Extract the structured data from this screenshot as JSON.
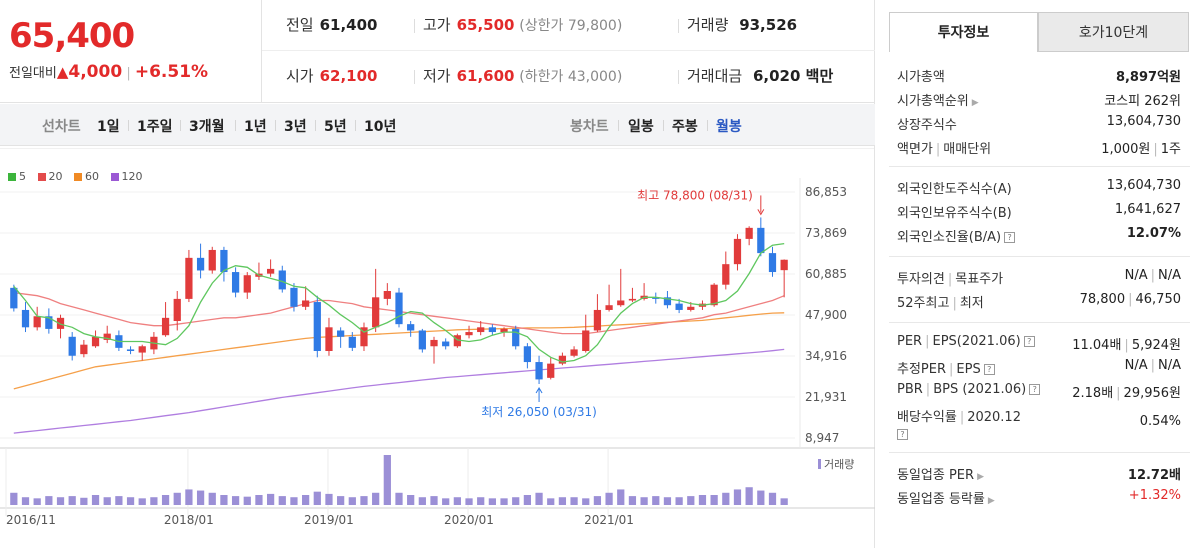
{
  "header": {
    "price": "65,400",
    "change_label": "전일대비",
    "change_arrow": "▲",
    "change_value": "4,000",
    "change_pct": "+6.51%"
  },
  "quotes": {
    "prev_label": "전일",
    "prev": "61,400",
    "high_label": "고가",
    "high": "65,500",
    "upper_limit": "(상한가 79,800)",
    "volume_label": "거래량",
    "volume": "93,526",
    "open_label": "시가",
    "open": "62,100",
    "low_label": "저가",
    "low": "61,600",
    "lower_limit": "(하한가 43,000)",
    "amount_label": "거래대금",
    "amount": "6,020 백만"
  },
  "period_tabs": {
    "line_label": "선차트",
    "line_items": [
      "1일",
      "1주일",
      "3개월",
      "1년",
      "3년",
      "5년",
      "10년"
    ],
    "candle_label": "봉차트",
    "candle_items": [
      "일봉",
      "주봉",
      "월봉"
    ],
    "active_candle": "월봉"
  },
  "legend": [
    {
      "label": "5",
      "color": "#3cb53c"
    },
    {
      "label": "20",
      "color": "#e34b4b"
    },
    {
      "label": "60",
      "color": "#f08a24"
    },
    {
      "label": "120",
      "color": "#9b59d4"
    }
  ],
  "chart_data": {
    "type": "candlestick",
    "y_ticks": [
      "86,853",
      "73,869",
      "60,885",
      "47,900",
      "34,916",
      "21,931",
      "8,947"
    ],
    "y_range": [
      8947,
      86853
    ],
    "x_ticks": [
      "2016/11",
      "2018/01",
      "2019/01",
      "2020/01",
      "2021/01"
    ],
    "annotations": {
      "high": "최고 78,800 (08/31)",
      "low": "최저 26,050 (03/31)"
    },
    "volume_label": "거래량",
    "candles": [
      {
        "o": 56500,
        "c": 50000,
        "h": 57500,
        "l": 49000
      },
      {
        "o": 49500,
        "c": 44000,
        "h": 52000,
        "l": 42500
      },
      {
        "o": 44000,
        "c": 47500,
        "h": 50500,
        "l": 43000
      },
      {
        "o": 47500,
        "c": 43500,
        "h": 50000,
        "l": 42000
      },
      {
        "o": 43500,
        "c": 47000,
        "h": 48000,
        "l": 40500
      },
      {
        "o": 41000,
        "c": 35000,
        "h": 42500,
        "l": 33500
      },
      {
        "o": 35500,
        "c": 38500,
        "h": 40000,
        "l": 34500
      },
      {
        "o": 38000,
        "c": 41000,
        "h": 43000,
        "l": 37500
      },
      {
        "o": 40000,
        "c": 42000,
        "h": 44500,
        "l": 39000
      },
      {
        "o": 41500,
        "c": 37500,
        "h": 43000,
        "l": 36500
      },
      {
        "o": 37000,
        "c": 36500,
        "h": 38000,
        "l": 35500
      },
      {
        "o": 36000,
        "c": 38000,
        "h": 38500,
        "l": 33500
      },
      {
        "o": 37000,
        "c": 41000,
        "h": 42500,
        "l": 35500
      },
      {
        "o": 41500,
        "c": 47000,
        "h": 52000,
        "l": 41000
      },
      {
        "o": 46000,
        "c": 53000,
        "h": 55500,
        "l": 43000
      },
      {
        "o": 53000,
        "c": 66000,
        "h": 68500,
        "l": 52000
      },
      {
        "o": 66000,
        "c": 62000,
        "h": 70500,
        "l": 59500
      },
      {
        "o": 62000,
        "c": 68500,
        "h": 69500,
        "l": 61000
      },
      {
        "o": 68500,
        "c": 61500,
        "h": 69500,
        "l": 58500
      },
      {
        "o": 61500,
        "c": 55000,
        "h": 63000,
        "l": 53500
      },
      {
        "o": 55000,
        "c": 60500,
        "h": 61500,
        "l": 53000
      },
      {
        "o": 60000,
        "c": 61000,
        "h": 64500,
        "l": 59000
      },
      {
        "o": 61000,
        "c": 62500,
        "h": 65500,
        "l": 60000
      },
      {
        "o": 62000,
        "c": 56000,
        "h": 63500,
        "l": 55000
      },
      {
        "o": 56500,
        "c": 50500,
        "h": 58000,
        "l": 49000
      },
      {
        "o": 50500,
        "c": 52500,
        "h": 57000,
        "l": 49500
      },
      {
        "o": 52000,
        "c": 36500,
        "h": 54000,
        "l": 34500
      },
      {
        "o": 36500,
        "c": 44000,
        "h": 47000,
        "l": 35000
      },
      {
        "o": 43000,
        "c": 41000,
        "h": 44000,
        "l": 37500
      },
      {
        "o": 41000,
        "c": 37500,
        "h": 42500,
        "l": 36500
      },
      {
        "o": 38000,
        "c": 44000,
        "h": 45500,
        "l": 36500
      },
      {
        "o": 44000,
        "c": 53500,
        "h": 62500,
        "l": 42500
      },
      {
        "o": 53000,
        "c": 55500,
        "h": 58000,
        "l": 51000
      },
      {
        "o": 55000,
        "c": 45000,
        "h": 56500,
        "l": 44000
      },
      {
        "o": 45000,
        "c": 43000,
        "h": 46000,
        "l": 41000
      },
      {
        "o": 43000,
        "c": 37000,
        "h": 43500,
        "l": 36000
      },
      {
        "o": 38000,
        "c": 40000,
        "h": 41000,
        "l": 32500
      },
      {
        "o": 39500,
        "c": 38000,
        "h": 40500,
        "l": 37000
      },
      {
        "o": 38000,
        "c": 41500,
        "h": 42000,
        "l": 37500
      },
      {
        "o": 41500,
        "c": 42500,
        "h": 44500,
        "l": 40500
      },
      {
        "o": 42500,
        "c": 44000,
        "h": 46000,
        "l": 41500
      },
      {
        "o": 44000,
        "c": 42500,
        "h": 45000,
        "l": 41500
      },
      {
        "o": 42500,
        "c": 43500,
        "h": 44000,
        "l": 41000
      },
      {
        "o": 43500,
        "c": 38000,
        "h": 44500,
        "l": 37000
      },
      {
        "o": 38000,
        "c": 33000,
        "h": 39000,
        "l": 31000
      },
      {
        "o": 33000,
        "c": 27500,
        "h": 35000,
        "l": 26050
      },
      {
        "o": 28000,
        "c": 32500,
        "h": 34500,
        "l": 27500
      },
      {
        "o": 32500,
        "c": 35000,
        "h": 36000,
        "l": 32000
      },
      {
        "o": 35000,
        "c": 37000,
        "h": 38000,
        "l": 34500
      },
      {
        "o": 36500,
        "c": 43000,
        "h": 48000,
        "l": 36000
      },
      {
        "o": 43000,
        "c": 49500,
        "h": 54500,
        "l": 42500
      },
      {
        "o": 49500,
        "c": 51000,
        "h": 57500,
        "l": 49000
      },
      {
        "o": 51000,
        "c": 52500,
        "h": 62500,
        "l": 50500
      },
      {
        "o": 52500,
        "c": 53000,
        "h": 56500,
        "l": 52000
      },
      {
        "o": 53000,
        "c": 54000,
        "h": 58000,
        "l": 52500
      },
      {
        "o": 53500,
        "c": 53000,
        "h": 55000,
        "l": 51500
      },
      {
        "o": 53500,
        "c": 51000,
        "h": 55500,
        "l": 50000
      },
      {
        "o": 51500,
        "c": 49500,
        "h": 53000,
        "l": 48500
      },
      {
        "o": 49500,
        "c": 50500,
        "h": 52000,
        "l": 49000
      },
      {
        "o": 50500,
        "c": 51500,
        "h": 52500,
        "l": 49500
      },
      {
        "o": 51000,
        "c": 57500,
        "h": 58000,
        "l": 50500
      },
      {
        "o": 57500,
        "c": 64000,
        "h": 68000,
        "l": 56000
      },
      {
        "o": 64000,
        "c": 72000,
        "h": 73500,
        "l": 62000
      },
      {
        "o": 72000,
        "c": 75500,
        "h": 76000,
        "l": 70000
      },
      {
        "o": 75500,
        "c": 67500,
        "h": 78800,
        "l": 66500
      },
      {
        "o": 67500,
        "c": 61500,
        "h": 69500,
        "l": 60000
      },
      {
        "o": 62100,
        "c": 65400,
        "h": 65500,
        "l": 53500
      }
    ],
    "volumes": [
      22,
      14,
      12,
      16,
      14,
      16,
      13,
      18,
      14,
      16,
      14,
      12,
      14,
      18,
      22,
      28,
      26,
      22,
      18,
      16,
      15,
      18,
      20,
      16,
      14,
      18,
      24,
      20,
      16,
      14,
      16,
      22,
      90,
      22,
      18,
      14,
      16,
      12,
      14,
      12,
      14,
      12,
      12,
      14,
      18,
      22,
      12,
      14,
      14,
      12,
      16,
      22,
      28,
      16,
      14,
      16,
      14,
      14,
      16,
      18,
      18,
      22,
      28,
      32,
      26,
      22,
      12
    ],
    "ma5": [
      57000,
      52500,
      47500,
      47000,
      45000,
      44000,
      42000,
      41000,
      40500,
      39500,
      39500,
      39500,
      39000,
      38500,
      40500,
      44500,
      52000,
      58000,
      62000,
      63500,
      63000,
      60500,
      59500,
      58500,
      57000,
      56500,
      53500,
      51000,
      48000,
      45500,
      42500,
      44000,
      45500,
      47500,
      49000,
      48500,
      45500,
      43000,
      40000,
      39500,
      40000,
      41500,
      42500,
      42500,
      41000,
      37000,
      34500,
      33000,
      33500,
      35000,
      38500,
      44000,
      48500,
      51500,
      53500,
      53500,
      53000,
      52500,
      51500,
      51000,
      51500,
      52500,
      55500,
      61000,
      67500,
      70000,
      70500
    ],
    "ma20": [
      55000,
      54500,
      54000,
      53000,
      51500,
      50500,
      49500,
      48500,
      47500,
      46500,
      45500,
      45000,
      44500,
      44500,
      45000,
      45500,
      46000,
      46500,
      47000,
      47000,
      47500,
      48000,
      48500,
      49500,
      50500,
      51500,
      52500,
      52500,
      52000,
      51500,
      50500,
      50000,
      49500,
      49000,
      48500,
      48000,
      47500,
      47000,
      46500,
      46000,
      45500,
      45000,
      44500,
      44000,
      43500,
      43000,
      42500,
      42000,
      42000,
      42000,
      42500,
      43000,
      43500,
      44000,
      44500,
      45000,
      45500,
      46000,
      46500,
      47000,
      48000,
      48500,
      49500,
      50500,
      51500,
      52500,
      54000
    ],
    "ma60": [
      24500,
      25500,
      26500,
      27500,
      28500,
      29500,
      30500,
      31500,
      32000,
      32500,
      33000,
      33500,
      34000,
      34500,
      35000,
      35500,
      36000,
      36500,
      37000,
      37500,
      38000,
      38500,
      39000,
      39500,
      40000,
      40500,
      40800,
      41000,
      41200,
      41400,
      41600,
      41800,
      42000,
      42200,
      42400,
      42600,
      42800,
      43000,
      43200,
      43300,
      43400,
      43500,
      43600,
      43700,
      43800,
      43800,
      43800,
      43900,
      44000,
      44200,
      44400,
      44600,
      44800,
      45000,
      45200,
      45400,
      45600,
      45800,
      46000,
      46200,
      46600,
      47000,
      47400,
      47800,
      48200,
      48500,
      48600
    ],
    "ma120": [
      10500,
      10900,
      11300,
      11700,
      12100,
      12500,
      12900,
      13300,
      13700,
      14100,
      14500,
      15000,
      15500,
      16000,
      16500,
      17000,
      17600,
      18200,
      18800,
      19400,
      20000,
      20600,
      21200,
      21800,
      22300,
      22800,
      23300,
      23800,
      24300,
      24800,
      25300,
      25700,
      26100,
      26500,
      26900,
      27300,
      27700,
      28100,
      28400,
      28700,
      29000,
      29300,
      29600,
      29900,
      30200,
      30500,
      30800,
      31100,
      31400,
      31700,
      32000,
      32300,
      32600,
      32900,
      33200,
      33500,
      33800,
      34100,
      34400,
      34700,
      35000,
      35300,
      35600,
      35900,
      36200,
      36600,
      37000
    ]
  },
  "right_tabs": {
    "tab1": "투자정보",
    "tab2": "호가10단계"
  },
  "invest_info": {
    "market_cap_label": "시가총액",
    "market_cap": "8,897억원",
    "rank_label": "시가총액순위",
    "rank": "코스피 262위",
    "shares_label": "상장주식수",
    "shares": "13,604,730",
    "par_label": "액면가",
    "unit_label": "매매단위",
    "par": "1,000원",
    "unit": "1주",
    "foreign_limit_label": "외국인한도주식수(A)",
    "foreign_limit": "13,604,730",
    "foreign_hold_label": "외국인보유주식수(B)",
    "foreign_hold": "1,641,627",
    "foreign_rate_label": "외국인소진율(B/A)",
    "foreign_rate": "12.07%",
    "opinion_label": "투자의견",
    "target_label": "목표주가",
    "opinion": "N/A",
    "target": "N/A",
    "w52_high_label": "52주최고",
    "w52_low_label": "최저",
    "w52_high": "78,800",
    "w52_low": "46,750",
    "per_label": "PER",
    "eps_label": "EPS(2021.06)",
    "per": "11.04배",
    "eps": "5,924원",
    "est_per_label": "추정PER",
    "est_eps_label": "EPS",
    "est_per": "N/A",
    "est_eps": "N/A",
    "pbr_label": "PBR",
    "bps_label": "BPS (2021.06)",
    "pbr": "2.18배",
    "bps": "29,956원",
    "div_label": "배당수익률",
    "div_date": "2020.12",
    "div": "0.54%",
    "sector_per_label": "동일업종 PER",
    "sector_per": "12.72배",
    "sector_rate_label": "동일업종 등락률",
    "sector_rate": "+1.32%"
  }
}
